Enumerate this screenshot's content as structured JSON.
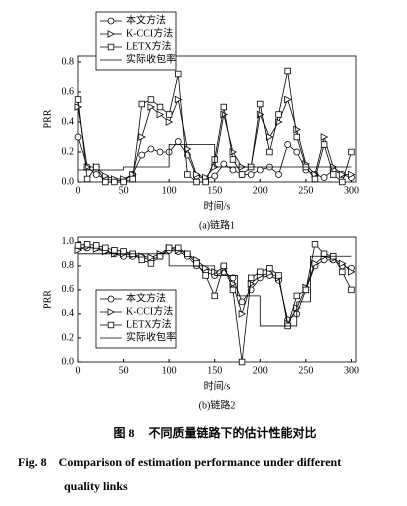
{
  "chart_data": [
    {
      "type": "line",
      "y_label": "PRR",
      "x_label": "时间/s",
      "subcaption": "(a)链路1",
      "xlim": [
        0,
        305
      ],
      "ylim": [
        0,
        0.84
      ],
      "xticks": [
        0,
        50,
        100,
        150,
        200,
        250,
        300
      ],
      "yticks": [
        {
          "value": 0,
          "label": "0.0"
        },
        0.2,
        0.4,
        0.6,
        0.8
      ],
      "legend": "upper left",
      "x": [
        0,
        10,
        20,
        30,
        40,
        50,
        60,
        70,
        80,
        90,
        100,
        110,
        120,
        130,
        140,
        150,
        160,
        170,
        180,
        190,
        200,
        210,
        220,
        230,
        240,
        250,
        260,
        270,
        280,
        290,
        300
      ],
      "series": [
        {
          "name": "本文方法",
          "color": "#000000",
          "marker": "circle",
          "values": [
            0.3,
            0.1,
            0.05,
            0.02,
            0.01,
            0.01,
            0.05,
            0.18,
            0.22,
            0.2,
            0.2,
            0.27,
            0.18,
            0.04,
            0.02,
            0.04,
            0.12,
            0.08,
            0.05,
            0.05,
            0.08,
            0.1,
            0.05,
            0.25,
            0.2,
            0.08,
            0.05,
            0.03,
            0.08,
            0.05,
            0.03
          ]
        },
        {
          "name": "K-CCI方法",
          "color": "#000000",
          "marker": "triangle",
          "values": [
            0.5,
            0.1,
            0.1,
            0.04,
            0.02,
            0.02,
            0.05,
            0.3,
            0.5,
            0.45,
            0.4,
            0.55,
            0.22,
            0.05,
            0.03,
            0.1,
            0.45,
            0.2,
            0.1,
            0.1,
            0.45,
            0.3,
            0.4,
            0.55,
            0.35,
            0.12,
            0.05,
            0.3,
            0.1,
            0.05,
            0.05
          ]
        },
        {
          "name": "LETX方法",
          "color": "#000000",
          "marker": "square",
          "values": [
            0.55,
            0.02,
            0.1,
            0,
            0,
            0,
            0.02,
            0.52,
            0.55,
            0.5,
            0.45,
            0.72,
            0.05,
            0,
            0,
            0.15,
            0.5,
            0.15,
            0.05,
            0.1,
            0.52,
            0.2,
            0.45,
            0.74,
            0.3,
            0.1,
            0.02,
            0.25,
            0.05,
            0,
            0.2
          ]
        },
        {
          "name": "实际收包率",
          "color": "#000000",
          "marker": "none",
          "x": [
            0,
            50,
            50,
            100,
            100,
            150,
            150,
            300
          ],
          "values": [
            0.08,
            0.08,
            0.1,
            0.1,
            0.25,
            0.25,
            0.1,
            0.1
          ]
        }
      ]
    },
    {
      "type": "line",
      "y_label": "PRR",
      "x_label": "时间/s",
      "subcaption": "(b)链路2",
      "xlim": [
        0,
        305
      ],
      "ylim": [
        0,
        1.04
      ],
      "xticks": [
        0,
        50,
        100,
        150,
        200,
        250,
        300
      ],
      "yticks": [
        {
          "value": 0,
          "label": "0.0"
        },
        0.2,
        0.4,
        0.6,
        0.8,
        {
          "value": 1,
          "label": "1.0"
        }
      ],
      "legend": "lower left",
      "x": [
        0,
        10,
        20,
        30,
        40,
        50,
        60,
        70,
        80,
        90,
        100,
        110,
        120,
        130,
        140,
        150,
        160,
        170,
        180,
        190,
        200,
        210,
        220,
        230,
        240,
        250,
        260,
        270,
        280,
        290,
        300
      ],
      "series": [
        {
          "name": "本文方法",
          "color": "#000000",
          "marker": "circle",
          "values": [
            0.95,
            0.95,
            0.95,
            0.93,
            0.9,
            0.88,
            0.88,
            0.87,
            0.85,
            0.88,
            0.93,
            0.92,
            0.88,
            0.8,
            0.75,
            0.72,
            0.75,
            0.7,
            0.5,
            0.6,
            0.7,
            0.72,
            0.68,
            0.35,
            0.4,
            0.6,
            0.8,
            0.85,
            0.85,
            0.8,
            0.78
          ]
        },
        {
          "name": "K-CCI方法",
          "color": "#000000",
          "marker": "triangle",
          "values": [
            0.93,
            0.96,
            0.94,
            0.92,
            0.9,
            0.9,
            0.89,
            0.88,
            0.87,
            0.9,
            0.95,
            0.93,
            0.9,
            0.85,
            0.78,
            0.75,
            0.78,
            0.65,
            0.4,
            0.65,
            0.72,
            0.74,
            0.7,
            0.32,
            0.45,
            0.62,
            0.82,
            0.88,
            0.86,
            0.82,
            0.75
          ]
        },
        {
          "name": "LETX方法",
          "color": "#000000",
          "marker": "square",
          "values": [
            0.97,
            0.98,
            0.97,
            0.95,
            0.93,
            0.92,
            0.9,
            0.85,
            0.82,
            0.88,
            0.95,
            0.95,
            0.9,
            0.82,
            0.72,
            0.55,
            0.8,
            0.6,
            0.0,
            0.7,
            0.75,
            0.78,
            0.72,
            0.3,
            0.55,
            0.6,
            0.98,
            0.9,
            0.88,
            0.75,
            0.6
          ]
        },
        {
          "name": "实际收包率",
          "color": "#000000",
          "marker": "none",
          "x": [
            0,
            100,
            100,
            150,
            150,
            175,
            175,
            200,
            200,
            240,
            240,
            255,
            255,
            300
          ],
          "values": [
            0.9,
            0.9,
            0.8,
            0.8,
            0.72,
            0.72,
            0.55,
            0.55,
            0.3,
            0.3,
            0.5,
            0.5,
            0.88,
            0.88
          ]
        }
      ]
    }
  ],
  "caption": {
    "label_cn": "图 8",
    "text_cn": "不同质量链路下的估计性能对比",
    "label_en": "Fig. 8",
    "text_en_lines": [
      "Comparison of estimation performance under different",
      "quality links"
    ]
  }
}
